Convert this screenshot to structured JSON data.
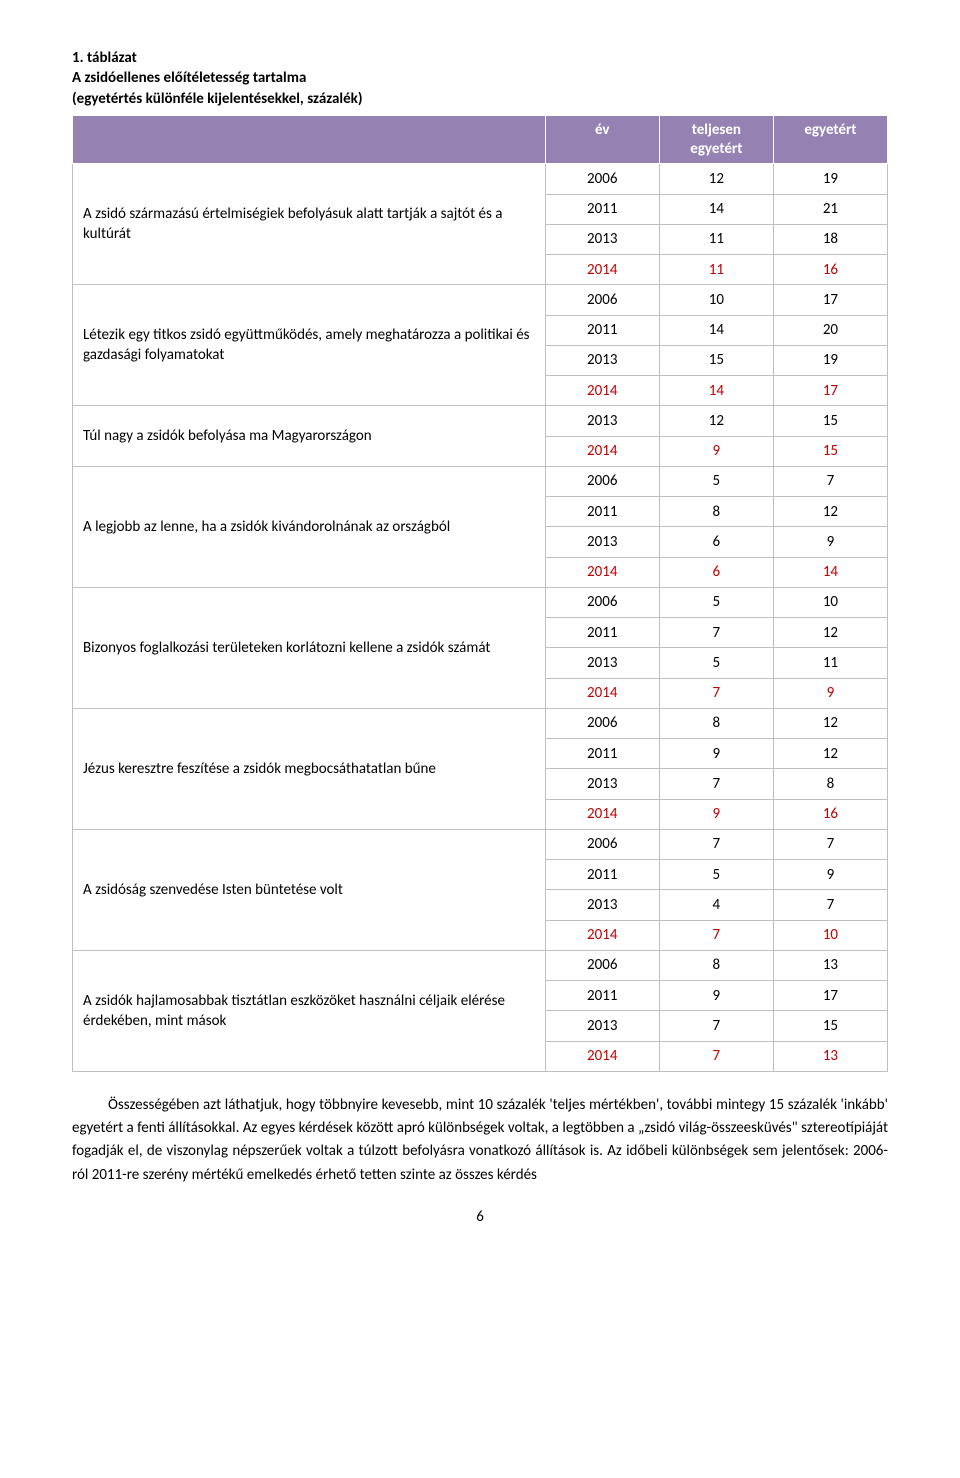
{
  "heading": {
    "line1": "1.   táblázat",
    "line2": "A zsidóellenes előítéletesség tartalma",
    "line3": "(egyetértés különféle kijelentésekkel, százalék)"
  },
  "columns": {
    "year": "év",
    "full": "teljesen egyetért",
    "agree": "egyetért"
  },
  "groups": [
    {
      "label": "A zsidó származású értelmiségiek befolyásuk alatt tartják a sajtót és a kultúrát",
      "rows": [
        {
          "year": "2006",
          "full": "12",
          "agree": "19",
          "red": false
        },
        {
          "year": "2011",
          "full": "14",
          "agree": "21",
          "red": false
        },
        {
          "year": "2013",
          "full": "11",
          "agree": "18",
          "red": false
        },
        {
          "year": "2014",
          "full": "11",
          "agree": "16",
          "red": true
        }
      ]
    },
    {
      "label": "Létezik egy titkos zsidó együttműködés, amely meghatározza a politikai és gazdasági folyamatokat",
      "rows": [
        {
          "year": "2006",
          "full": "10",
          "agree": "17",
          "red": false
        },
        {
          "year": "2011",
          "full": "14",
          "agree": "20",
          "red": false
        },
        {
          "year": "2013",
          "full": "15",
          "agree": "19",
          "red": false
        },
        {
          "year": "2014",
          "full": "14",
          "agree": "17",
          "red": true
        }
      ]
    },
    {
      "label": "Túl nagy a zsidók befolyása ma Magyarországon",
      "rows": [
        {
          "year": "2013",
          "full": "12",
          "agree": "15",
          "red": false
        },
        {
          "year": "2014",
          "full": "9",
          "agree": "15",
          "red": true
        }
      ]
    },
    {
      "label": "A legjobb az lenne, ha a zsidók kivándorolnának az országból",
      "rows": [
        {
          "year": "2006",
          "full": "5",
          "agree": "7",
          "red": false
        },
        {
          "year": "2011",
          "full": "8",
          "agree": "12",
          "red": false
        },
        {
          "year": "2013",
          "full": "6",
          "agree": "9",
          "red": false
        },
        {
          "year": "2014",
          "full": "6",
          "agree": "14",
          "red": true
        }
      ]
    },
    {
      "label": "Bizonyos foglalkozási területeken korlátozni kellene a zsidók számát",
      "rows": [
        {
          "year": "2006",
          "full": "5",
          "agree": "10",
          "red": false
        },
        {
          "year": "2011",
          "full": "7",
          "agree": "12",
          "red": false
        },
        {
          "year": "2013",
          "full": "5",
          "agree": "11",
          "red": false
        },
        {
          "year": "2014",
          "full": "7",
          "agree": "9",
          "red": true
        }
      ]
    },
    {
      "label": "Jézus keresztre feszítése a zsidók megbocsáthatatlan bűne",
      "rows": [
        {
          "year": "2006",
          "full": "8",
          "agree": "12",
          "red": false
        },
        {
          "year": "2011",
          "full": "9",
          "agree": "12",
          "red": false
        },
        {
          "year": "2013",
          "full": "7",
          "agree": "8",
          "red": false
        },
        {
          "year": "2014",
          "full": "9",
          "agree": "16",
          "red": true
        }
      ]
    },
    {
      "label": "A zsidóság szenvedése Isten büntetése volt",
      "rows": [
        {
          "year": "2006",
          "full": "7",
          "agree": "7",
          "red": false
        },
        {
          "year": "2011",
          "full": "5",
          "agree": "9",
          "red": false
        },
        {
          "year": "2013",
          "full": "4",
          "agree": "7",
          "red": false
        },
        {
          "year": "2014",
          "full": "7",
          "agree": "10",
          "red": true
        }
      ]
    },
    {
      "label": "A zsidók hajlamosabbak tisztátlan eszközöket használni céljaik elérése érdekében, mint mások",
      "rows": [
        {
          "year": "2006",
          "full": "8",
          "agree": "13",
          "red": false
        },
        {
          "year": "2011",
          "full": "9",
          "agree": "17",
          "red": false
        },
        {
          "year": "2013",
          "full": "7",
          "agree": "15",
          "red": false
        },
        {
          "year": "2014",
          "full": "7",
          "agree": "13",
          "red": true
        }
      ]
    }
  ],
  "paragraph": "Összességében azt láthatjuk, hogy többnyire kevesebb, mint 10 százalék 'teljes mértékben', további mintegy 15 százalék 'inkább' egyetért a fenti állításokkal. Az egyes kérdések között apró különbségek voltak, a legtöbben a „zsidó világ-összeesküvés\" sztereotípiáját fogadják el, de viszonylag népszerűek voltak a túlzott befolyásra vonatkozó állítások is. Az időbeli különbségek sem jelentősek: 2006-ról 2011-re szerény mértékű emelkedés érhető tetten szinte az összes kérdés",
  "pageNumber": "6",
  "style": {
    "header_bg": "#9581b2",
    "header_fg": "#ffffff",
    "red_color": "#c00000",
    "border_color": "#bfbfbf",
    "font_family": "Calibri"
  }
}
